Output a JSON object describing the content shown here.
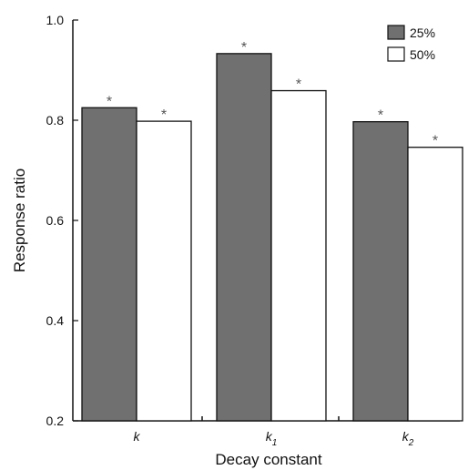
{
  "chart_data": {
    "type": "bar",
    "title": "",
    "xlabel": "Decay constant",
    "ylabel": "Response ratio",
    "ylim": [
      0.2,
      1.0
    ],
    "yticks": [
      "0.2",
      "0.4",
      "0.6",
      "0.8",
      "1.0"
    ],
    "categories": [
      {
        "base": "k",
        "sub": ""
      },
      {
        "base": "k",
        "sub": "1"
      },
      {
        "base": "k",
        "sub": "2"
      }
    ],
    "series": [
      {
        "name": "25%",
        "color": "#707070",
        "values": [
          0.825,
          0.933,
          0.797
        ],
        "annotations": [
          "*",
          "*",
          "*"
        ]
      },
      {
        "name": "50%",
        "color": "#ffffff",
        "values": [
          0.798,
          0.859,
          0.746
        ],
        "annotations": [
          "*",
          "*",
          "*"
        ]
      }
    ],
    "legend_position": "top-right",
    "grid": false
  }
}
